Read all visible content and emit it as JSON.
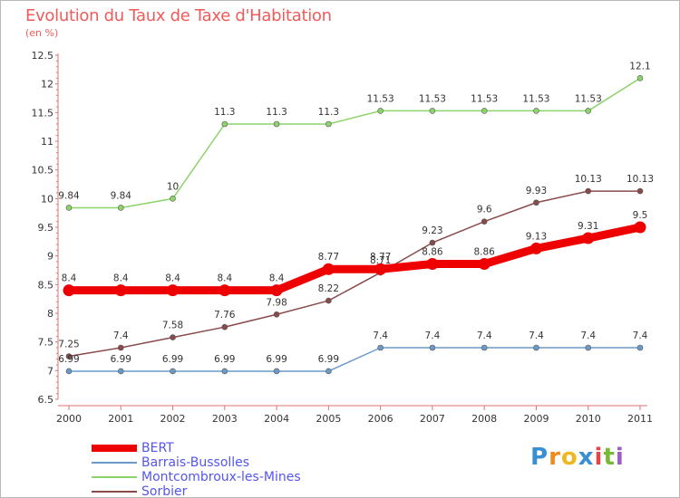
{
  "title": "Evolution du Taux de Taxe d'Habitation",
  "subtitle": "(en %)",
  "logo": {
    "letters": [
      "P",
      "r",
      "o",
      "x",
      "i",
      "t",
      "i"
    ],
    "colors": [
      "#3a8fd0",
      "#f08a1c",
      "#f0b820",
      "#3a8fd0",
      "#e04848",
      "#7ab838",
      "#9d5cc8"
    ]
  },
  "chart_data": {
    "type": "line",
    "x": [
      "2000",
      "2001",
      "2002",
      "2003",
      "2004",
      "2005",
      "2006",
      "2007",
      "2008",
      "2009",
      "2010",
      "2011"
    ],
    "ylim": [
      6.5,
      12.5
    ],
    "yticks": [
      "6.5",
      "7",
      "7.5",
      "8",
      "8.5",
      "9",
      "9.5",
      "10",
      "10.5",
      "11",
      "11.5",
      "12",
      "12.5"
    ],
    "grid": false,
    "legend": "bottom-left",
    "series": [
      {
        "name": "BERT",
        "color": "#ee0000",
        "width": 9,
        "marker": 6.5,
        "values": [
          8.4,
          8.4,
          8.4,
          8.4,
          8.4,
          8.77,
          8.77,
          8.86,
          8.86,
          9.13,
          9.31,
          9.5
        ],
        "labels": [
          "8.4",
          "8.4",
          "8.4",
          "8.4",
          "8.4",
          "8.77",
          "8.77",
          "8.86",
          "8.86",
          "9.13",
          "9.31",
          "9.5"
        ]
      },
      {
        "name": "Barrais-Bussolles",
        "color": "#6a9bc8",
        "width": 1.5,
        "marker": 3,
        "values": [
          6.99,
          6.99,
          6.99,
          6.99,
          6.99,
          6.99,
          7.4,
          7.4,
          7.4,
          7.4,
          7.4,
          7.4
        ],
        "labels": [
          "6.99",
          "6.99",
          "6.99",
          "6.99",
          "6.99",
          "6.99",
          "7.4",
          "7.4",
          "7.4",
          "7.4",
          "7.4",
          "7.4"
        ]
      },
      {
        "name": "Montcombroux-les-Mines",
        "color": "#8cd36b",
        "width": 1.5,
        "marker": 3,
        "values": [
          9.84,
          9.84,
          10,
          11.3,
          11.3,
          11.3,
          11.53,
          11.53,
          11.53,
          11.53,
          11.53,
          12.1
        ],
        "labels": [
          "9.84",
          "9.84",
          "10",
          "11.3",
          "11.3",
          "11.3",
          "11.53",
          "11.53",
          "11.53",
          "11.53",
          "11.53",
          "12.1"
        ]
      },
      {
        "name": "Sorbier",
        "color": "#8a4a4a",
        "width": 1.5,
        "marker": 3,
        "values": [
          7.25,
          7.4,
          7.58,
          7.76,
          7.98,
          8.22,
          8.71,
          9.23,
          9.6,
          9.93,
          10.13,
          10.13
        ],
        "labels": [
          "7.25",
          "7.4",
          "7.58",
          "7.76",
          "7.98",
          "8.22",
          "8.71",
          "9.23",
          "9.6",
          "9.93",
          "10.13",
          "10.13"
        ]
      }
    ]
  }
}
